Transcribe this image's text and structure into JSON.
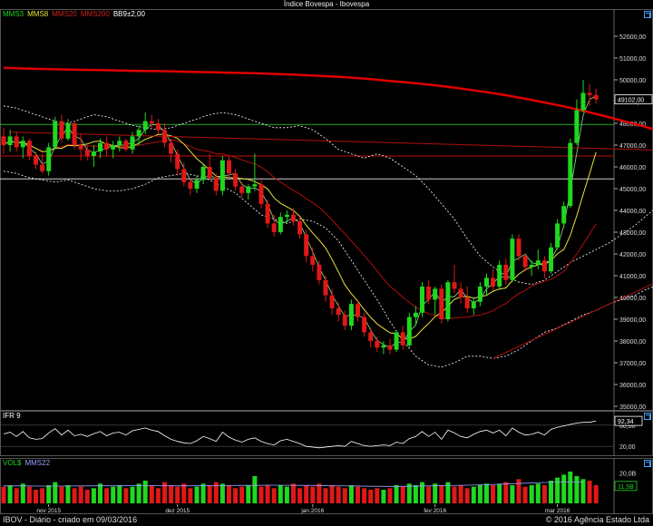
{
  "title": "Índice Bovespa - Ibovespa",
  "legend_main": [
    {
      "label": "MMS3",
      "color": "#1fd81f"
    },
    {
      "label": "MMS8",
      "color": "#e8e23a"
    },
    {
      "label": "MMS20",
      "color": "#d42020"
    },
    {
      "label": "MMS200",
      "color": "#d42020"
    },
    {
      "label": "BB9±2,00",
      "color": "#ffffff"
    }
  ],
  "legend_ifr": {
    "label": "IFR 9",
    "color": "#ffffff"
  },
  "legend_vol": [
    {
      "label": "VOL$",
      "color": "#1fd81f"
    },
    {
      "label": "MMS22",
      "color": "#9aa0ff"
    }
  ],
  "footer": {
    "left": "IBOV - Diário - criado em 09/03/2016",
    "right": "© 2016 Agência Estado Ltda"
  },
  "colors": {
    "up": "#1fd81f",
    "down": "#e01818",
    "mm200": "#e00000",
    "mm3": "#8fe08f",
    "mm8": "#e8e23a",
    "mm20": "#b01010",
    "hline": "#1faa1f",
    "hline_red": "#c01010",
    "hline_white": "#cfcfcf",
    "bb": "#ffffff",
    "grid": "#2a2a2a",
    "axis": "#ffffff"
  },
  "chart_data": [
    {
      "type": "candlestick",
      "title": "Índice Bovespa - Ibovespa",
      "y_ticks": [
        35000,
        36000,
        37000,
        38000,
        39000,
        40000,
        41000,
        42000,
        43000,
        44000,
        45000,
        46000,
        47000,
        48000,
        49000,
        50000,
        51000,
        52000
      ],
      "y_tick_labels": [
        "35000,00",
        "36000,00",
        "37000,00",
        "38000,00",
        "39000,00",
        "40000,00",
        "41000,00",
        "42000,00",
        "43000,00",
        "44000,00",
        "45000,00",
        "46000,00",
        "47000,00",
        "48000,00",
        "49000,00",
        "50000,00",
        "51000,00",
        "52000,00"
      ],
      "ylim": [
        35000,
        53000
      ],
      "x_tick_labels": [
        "nov 2015",
        "dez 2015",
        "jan 2016",
        "fev 2016",
        "mar 2016"
      ],
      "last_value_label": "49102,00",
      "candles": [
        [
          47400,
          47800,
          46600,
          47000
        ],
        [
          47000,
          47700,
          46700,
          47400
        ],
        [
          47400,
          47600,
          46700,
          46900
        ],
        [
          46900,
          47400,
          46400,
          47200
        ],
        [
          47200,
          47300,
          46300,
          46500
        ],
        [
          46500,
          46700,
          45900,
          46100
        ],
        [
          46100,
          46600,
          45700,
          45800
        ],
        [
          45800,
          47100,
          45600,
          46900
        ],
        [
          46900,
          48300,
          46800,
          48100
        ],
        [
          48100,
          48400,
          47100,
          47300
        ],
        [
          47300,
          48200,
          47200,
          48000
        ],
        [
          48000,
          48100,
          46800,
          47000
        ],
        [
          47000,
          47500,
          46300,
          46800
        ],
        [
          46800,
          47000,
          46300,
          46500
        ],
        [
          46500,
          47000,
          46000,
          46700
        ],
        [
          46700,
          47300,
          46400,
          47100
        ],
        [
          47100,
          47400,
          46500,
          46800
        ],
        [
          46800,
          47200,
          46400,
          47000
        ],
        [
          47000,
          47400,
          46700,
          47200
        ],
        [
          47200,
          47300,
          46700,
          46800
        ],
        [
          46800,
          47600,
          46600,
          47400
        ],
        [
          47400,
          47900,
          47000,
          47700
        ],
        [
          47700,
          48500,
          47500,
          48100
        ],
        [
          48100,
          48400,
          47800,
          48000
        ],
        [
          48000,
          48200,
          47500,
          47700
        ],
        [
          47700,
          48000,
          46900,
          47100
        ],
        [
          47100,
          47300,
          46200,
          46600
        ],
        [
          46600,
          46800,
          45600,
          45900
        ],
        [
          45900,
          46200,
          45100,
          45300
        ],
        [
          45300,
          45500,
          44700,
          45000
        ],
        [
          45000,
          45600,
          44800,
          45400
        ],
        [
          45400,
          46100,
          45200,
          46000
        ],
        [
          46000,
          46600,
          45400,
          45500
        ],
        [
          45500,
          45700,
          44700,
          44900
        ],
        [
          44900,
          46500,
          44700,
          46300
        ],
        [
          46300,
          46500,
          45500,
          45700
        ],
        [
          45700,
          45900,
          44900,
          45100
        ],
        [
          45100,
          45300,
          44600,
          44800
        ],
        [
          44800,
          45200,
          44500,
          45100
        ],
        [
          45100,
          46600,
          44900,
          45200
        ],
        [
          45200,
          45400,
          44100,
          44300
        ],
        [
          44300,
          44500,
          43200,
          43400
        ],
        [
          43400,
          43800,
          42800,
          43000
        ],
        [
          43000,
          43900,
          42900,
          43700
        ],
        [
          43700,
          44000,
          43400,
          43800
        ],
        [
          43800,
          44100,
          43300,
          43500
        ],
        [
          43500,
          43700,
          42700,
          42900
        ],
        [
          42900,
          43100,
          41600,
          41900
        ],
        [
          41900,
          42300,
          41200,
          41500
        ],
        [
          41500,
          41700,
          40600,
          40800
        ],
        [
          40800,
          41000,
          39800,
          40100
        ],
        [
          40100,
          40400,
          39200,
          39500
        ],
        [
          39500,
          39800,
          38900,
          39200
        ],
        [
          39200,
          39400,
          38500,
          38700
        ],
        [
          38700,
          39900,
          38500,
          39700
        ],
        [
          39700,
          39900,
          38900,
          39100
        ],
        [
          39100,
          39300,
          38200,
          38400
        ],
        [
          38400,
          38600,
          37700,
          38000
        ],
        [
          38000,
          38200,
          37500,
          37700
        ],
        [
          37700,
          38000,
          37400,
          37800
        ],
        [
          37800,
          38100,
          37400,
          37600
        ],
        [
          37600,
          38500,
          37500,
          38400
        ],
        [
          38400,
          38700,
          37600,
          37800
        ],
        [
          37800,
          39300,
          37700,
          39100
        ],
        [
          39100,
          39600,
          38700,
          39300
        ],
        [
          39300,
          40700,
          39100,
          40500
        ],
        [
          40500,
          40800,
          39700,
          39900
        ],
        [
          39900,
          40500,
          39200,
          40400
        ],
        [
          40400,
          40600,
          38800,
          39000
        ],
        [
          39000,
          40800,
          38900,
          40700
        ],
        [
          40700,
          41500,
          40200,
          40400
        ],
        [
          40400,
          40700,
          39700,
          40000
        ],
        [
          40000,
          40500,
          39300,
          39500
        ],
        [
          39500,
          40000,
          39200,
          39800
        ],
        [
          39800,
          40700,
          39600,
          40500
        ],
        [
          40500,
          41100,
          40100,
          40900
        ],
        [
          40900,
          41300,
          40300,
          40500
        ],
        [
          40500,
          41700,
          40400,
          41500
        ],
        [
          41500,
          41800,
          40600,
          40800
        ],
        [
          40800,
          42900,
          40700,
          42700
        ],
        [
          42700,
          42900,
          41700,
          41900
        ],
        [
          41900,
          42000,
          41200,
          41400
        ],
        [
          41400,
          41700,
          41000,
          41500
        ],
        [
          41500,
          42200,
          41300,
          41700
        ],
        [
          41700,
          41900,
          40900,
          41200
        ],
        [
          41200,
          42500,
          41100,
          42300
        ],
        [
          42300,
          43600,
          42200,
          43400
        ],
        [
          43400,
          44400,
          43200,
          44200
        ],
        [
          44200,
          47300,
          44100,
          47100
        ],
        [
          47100,
          49100,
          47000,
          48600
        ],
        [
          48600,
          50000,
          48500,
          49400
        ],
        [
          49400,
          49800,
          48800,
          49300
        ],
        [
          49300,
          49600,
          48900,
          49102
        ]
      ],
      "mm200": [
        50550,
        50520,
        50500,
        50480,
        50460,
        50450,
        50430,
        50410,
        50400,
        50380,
        50360,
        50340,
        50320,
        50300,
        50270,
        50240,
        50200,
        50150,
        50100,
        50030,
        49950,
        49870,
        49780,
        49680,
        49560,
        49430,
        49290,
        49130,
        48960,
        48780,
        48580,
        48360,
        48130,
        47890,
        47640,
        47380,
        47210,
        47160
      ],
      "mm200_x": [
        0,
        3,
        6,
        9,
        12,
        15,
        18,
        21,
        24,
        27,
        30,
        33,
        36,
        39,
        42,
        45,
        48,
        51,
        54,
        57,
        60,
        63,
        66,
        69,
        72,
        75,
        78,
        81,
        84,
        87,
        90,
        93,
        96,
        99,
        102,
        105,
        108,
        110
      ],
      "bb_upper": [
        48800,
        48700,
        48500,
        48300,
        48100,
        48000,
        48200,
        48400,
        48300,
        48100,
        47900,
        47800,
        47700,
        47800,
        48000,
        48200,
        48400,
        48500,
        48400,
        48200,
        48000,
        47800,
        47800,
        47900,
        47700,
        47300,
        46800,
        46600,
        46400,
        46600,
        46400,
        46000,
        45600,
        45000,
        44300,
        43600,
        42700,
        41900,
        41400,
        41000,
        40700,
        40600,
        40800,
        41200,
        41600,
        41900,
        42200,
        42500,
        42900,
        43300,
        43800,
        44300,
        45000,
        46200,
        48500,
        50400,
        51500
      ],
      "bb_lower": [
        45800,
        45700,
        45500,
        45400,
        45300,
        45400,
        45200,
        45000,
        44900,
        44900,
        45000,
        45200,
        45500,
        45600,
        45700,
        45600,
        45400,
        45100,
        44800,
        44300,
        43800,
        43600,
        43400,
        43600,
        43500,
        43200,
        42600,
        41700,
        40800,
        39900,
        38900,
        38000,
        37300,
        36900,
        36800,
        37000,
        37300,
        37300,
        37200,
        37300,
        37600,
        38000,
        38400,
        38600,
        38900,
        39200,
        39400,
        39700,
        39900,
        40100,
        40400,
        40600,
        40100,
        39400,
        38900,
        38800,
        39100
      ],
      "bb_x": [
        0,
        2,
        4,
        6,
        8,
        10,
        12,
        14,
        16,
        18,
        20,
        22,
        24,
        26,
        28,
        30,
        32,
        34,
        36,
        38,
        40,
        42,
        44,
        46,
        48,
        50,
        52,
        54,
        56,
        58,
        60,
        62,
        64,
        66,
        68,
        70,
        72,
        74,
        76,
        78,
        80,
        82,
        84,
        86,
        88,
        90,
        92,
        94,
        96,
        98,
        100,
        102,
        104,
        106,
        108,
        110,
        112
      ],
      "horizontal_lines": [
        47950,
        46500,
        45450
      ],
      "trendlines": [
        [
          [
            1,
            47600
          ],
          [
            110,
            46700
          ]
        ],
        [
          [
            76,
            37200
          ],
          [
            110,
            41900
          ]
        ]
      ]
    },
    {
      "type": "line",
      "name": "IFR 9",
      "ylim": [
        0,
        100
      ],
      "y_tick_labels": [
        "20,00",
        "80,00"
      ],
      "y_ticks": [
        20,
        80
      ],
      "last_value_label": "92,34",
      "values": [
        55,
        60,
        48,
        62,
        44,
        40,
        42,
        58,
        70,
        52,
        66,
        50,
        54,
        48,
        56,
        62,
        50,
        58,
        60,
        52,
        64,
        68,
        72,
        66,
        62,
        50,
        40,
        34,
        30,
        28,
        36,
        48,
        42,
        34,
        60,
        46,
        38,
        32,
        40,
        44,
        34,
        28,
        24,
        36,
        40,
        34,
        28,
        20,
        18,
        16,
        18,
        20,
        22,
        20,
        34,
        28,
        22,
        20,
        22,
        24,
        22,
        32,
        28,
        42,
        48,
        62,
        48,
        60,
        40,
        66,
        58,
        48,
        44,
        54,
        62,
        66,
        58,
        66,
        50,
        72,
        60,
        52,
        54,
        60,
        52,
        68,
        74,
        78,
        82,
        86,
        88,
        88,
        92
      ]
    },
    {
      "type": "bar",
      "name": "VOL$",
      "y_tick_labels": [
        "20,0B",
        "11,5B"
      ],
      "last_value_label": "11,5B",
      "values": [
        11,
        12,
        10,
        13,
        11,
        9,
        10,
        12,
        14,
        11,
        12,
        10,
        11,
        9,
        10,
        13,
        10,
        11,
        12,
        10,
        11,
        13,
        15,
        12,
        10,
        14,
        12,
        11,
        13,
        10,
        11,
        13,
        12,
        14,
        13,
        12,
        10,
        11,
        12,
        18,
        11,
        12,
        10,
        12,
        11,
        13,
        10,
        12,
        11,
        13,
        10,
        12,
        11,
        10,
        12,
        11,
        10,
        9,
        10,
        9,
        10,
        12,
        11,
        13,
        12,
        14,
        11,
        13,
        12,
        14,
        11,
        12,
        10,
        11,
        12,
        13,
        12,
        13,
        14,
        12,
        16,
        11,
        12,
        13,
        12,
        15,
        17,
        19,
        21,
        18,
        16,
        15,
        12
      ],
      "ma_values": [
        11.5,
        11.5,
        11.4,
        11.4,
        11.5,
        11.6,
        11.6,
        11.7,
        11.7,
        11.6,
        11.6,
        11.7,
        11.8,
        11.9,
        12.0,
        11.9,
        11.8,
        11.6,
        11.5,
        11.3,
        11.2,
        11.3,
        11.5,
        11.7,
        12.0,
        12.3,
        12.8,
        13.3,
        13.8,
        14.1,
        14.2
      ]
    }
  ]
}
